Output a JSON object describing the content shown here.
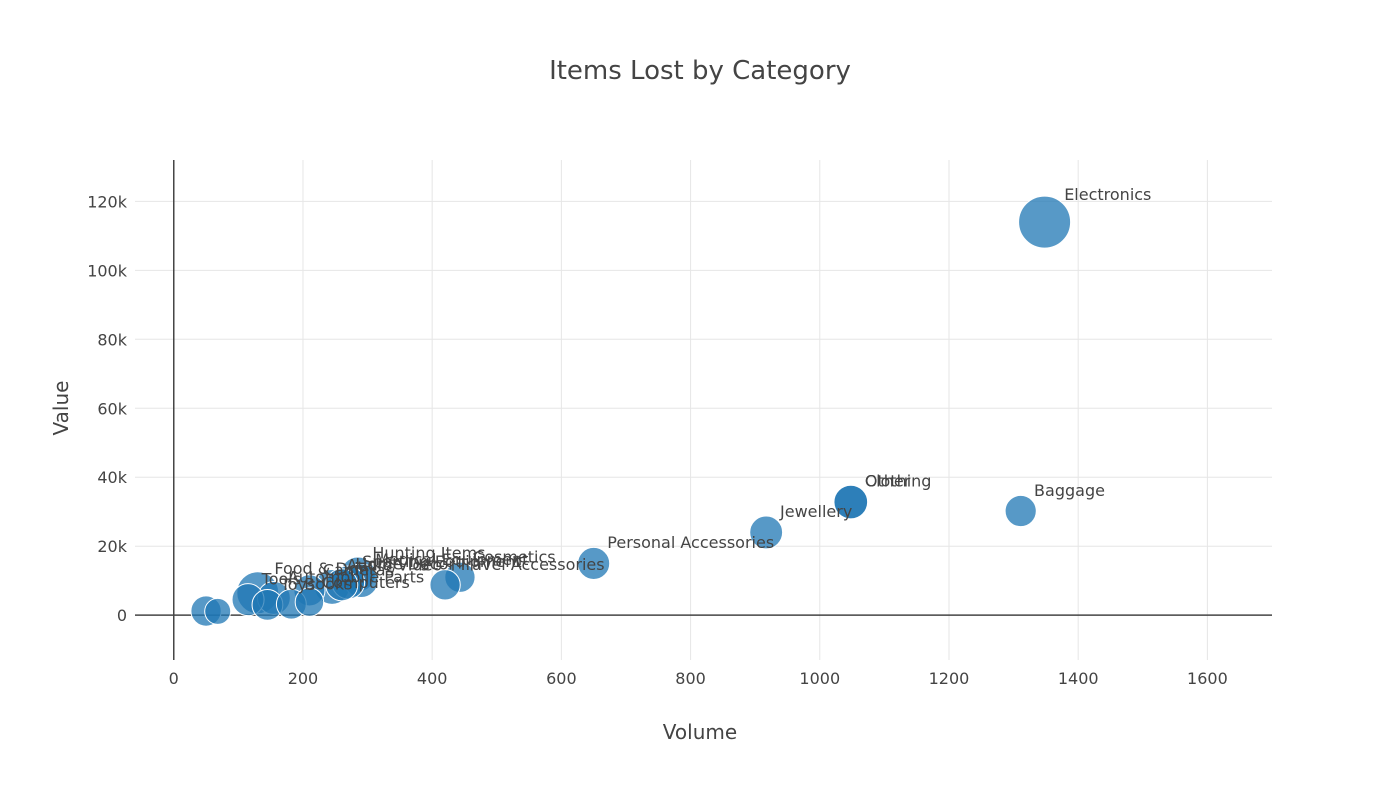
{
  "chart_data": {
    "type": "scatter",
    "title": "Items Lost by Category",
    "xlabel": "Volume",
    "ylabel": "Value",
    "xlim": [
      -60,
      1700
    ],
    "ylim": [
      -13000,
      132000
    ],
    "x_ticks": [
      0,
      200,
      400,
      600,
      800,
      1000,
      1200,
      1400,
      1600
    ],
    "x_tick_labels": [
      "0",
      "200",
      "400",
      "600",
      "800",
      "1000",
      "1200",
      "1400",
      "1600"
    ],
    "y_ticks": [
      0,
      20000,
      40000,
      60000,
      80000,
      100000,
      120000
    ],
    "y_tick_labels": [
      "0",
      "20k",
      "40k",
      "60k",
      "80k",
      "100k",
      "120k"
    ],
    "grid": true,
    "legend": "none",
    "marker_color": "#1f77b4",
    "points": [
      {
        "label": "Electronics",
        "x": 1348,
        "y": 114000,
        "size": 1.0
      },
      {
        "label": "Other",
        "x": 1048,
        "y": 32800,
        "size": 0.42
      },
      {
        "label": "Baggage",
        "x": 1311,
        "y": 30200,
        "size": 0.36
      },
      {
        "label": "Clothing",
        "x": 1048,
        "y": 32800,
        "size": 0.42
      },
      {
        "label": "Jewellery",
        "x": 917,
        "y": 24000,
        "size": 0.4
      },
      {
        "label": "Personal Accessories",
        "x": 650,
        "y": 15000,
        "size": 0.38
      },
      {
        "label": "Cosmetics",
        "x": 443,
        "y": 11000,
        "size": 0.34
      },
      {
        "label": "Travel Accessories",
        "x": 420,
        "y": 8800,
        "size": 0.34
      },
      {
        "label": "Hunting Items",
        "x": 285,
        "y": 11800,
        "size": 0.45
      },
      {
        "label": "Medical Equipment",
        "x": 290,
        "y": 10000,
        "size": 0.42
      },
      {
        "label": "Sporting Equipment",
        "x": 270,
        "y": 9500,
        "size": 0.4
      },
      {
        "label": "Home Decor",
        "x": 260,
        "y": 8800,
        "size": 0.38
      },
      {
        "label": "Audio/Video",
        "x": 245,
        "y": 8200,
        "size": 0.45
      },
      {
        "label": "Cameras",
        "x": 210,
        "y": 7200,
        "size": 0.36
      },
      {
        "label": "Automobile Parts",
        "x": 155,
        "y": 5000,
        "size": 0.4
      },
      {
        "label": "Food & Drink",
        "x": 130,
        "y": 6500,
        "size": 0.65
      },
      {
        "label": "Computers",
        "x": 210,
        "y": 3800,
        "size": 0.3
      },
      {
        "label": "Books",
        "x": 182,
        "y": 3200,
        "size": 0.33
      },
      {
        "label": "Toys",
        "x": 145,
        "y": 3000,
        "size": 0.35
      },
      {
        "label": "Tools",
        "x": 115,
        "y": 4500,
        "size": 0.38
      },
      {
        "label": "",
        "x": 50,
        "y": 1200,
        "size": 0.34
      },
      {
        "label": "",
        "x": 68,
        "y": 1100,
        "size": 0.25
      }
    ]
  }
}
